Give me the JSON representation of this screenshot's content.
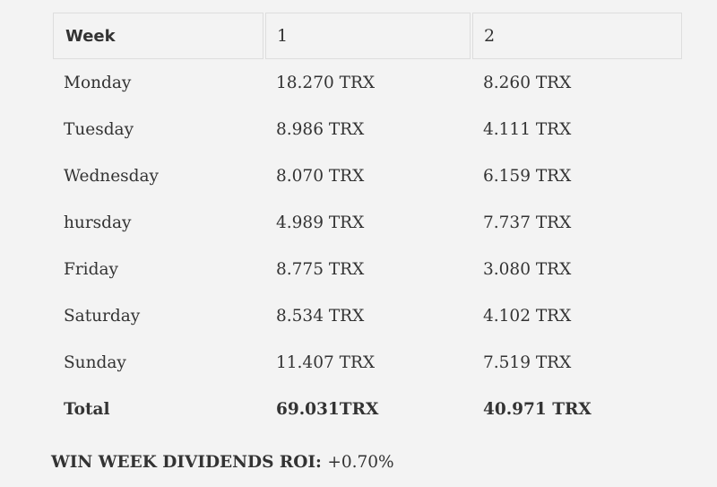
{
  "table": {
    "headers": [
      "Week",
      "1",
      "2"
    ],
    "rows": [
      {
        "day": "Monday",
        "week1": "18.270 TRX",
        "week2": "8.260 TRX"
      },
      {
        "day": "Tuesday",
        "week1": "8.986 TRX",
        "week2": "4.111 TRX"
      },
      {
        "day": "Wednesday",
        "week1": "8.070 TRX",
        "week2": "6.159 TRX"
      },
      {
        "day": "hursday",
        "week1": "4.989 TRX",
        "week2": "7.737 TRX"
      },
      {
        "day": "Friday",
        "week1": "8.775 TRX",
        "week2": "3.080 TRX"
      },
      {
        "day": "Saturday",
        "week1": "8.534 TRX",
        "week2": "4.102 TRX"
      },
      {
        "day": "Sunday",
        "week1": "11.407 TRX",
        "week2": "7.519 TRX"
      }
    ],
    "total": {
      "label": "Total",
      "week1": "69.031TRX",
      "week2": "40.971 TRX"
    }
  },
  "roi": {
    "label": "WIN WEEK DIVIDENDS ROI:",
    "value": "+0.70%"
  }
}
